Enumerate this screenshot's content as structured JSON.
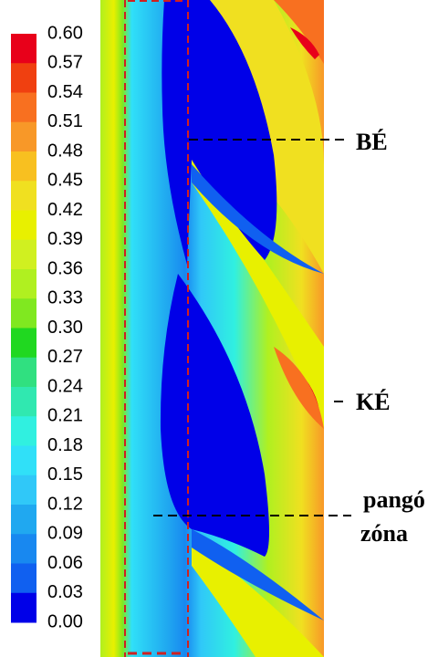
{
  "colorbar": {
    "labels": [
      "0.60",
      "0.57",
      "0.54",
      "0.51",
      "0.48",
      "0.45",
      "0.42",
      "0.39",
      "0.36",
      "0.33",
      "0.30",
      "0.27",
      "0.24",
      "0.21",
      "0.18",
      "0.15",
      "0.12",
      "0.09",
      "0.06",
      "0.03",
      "0.00"
    ]
  },
  "annotations": {
    "be": "BÉ",
    "ke": "KÉ",
    "pango": "pangó",
    "zona": "zóna"
  }
}
